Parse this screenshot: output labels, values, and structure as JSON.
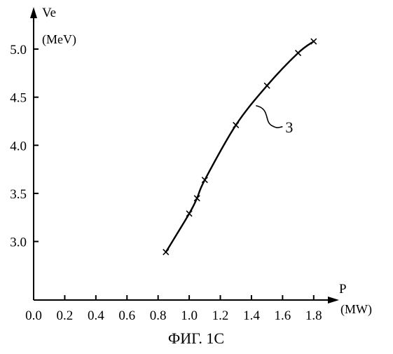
{
  "chart_data": {
    "type": "line",
    "caption": "ФИГ. 1С",
    "x_axis": {
      "name": "P",
      "unit": "(MW)",
      "range": [
        0.0,
        1.9
      ],
      "ticks": [
        "0.0",
        "0.2",
        "0.4",
        "0.6",
        "0.8",
        "1.0",
        "1.2",
        "1.4",
        "1.6",
        "1.8"
      ]
    },
    "y_axis": {
      "name": "Ve",
      "unit": "(MeV)",
      "range": [
        2.45,
        5.35
      ],
      "ticks": [
        "3.0",
        "3.5",
        "4.0",
        "4.5",
        "5.0"
      ]
    },
    "series": [
      {
        "callout": "3",
        "x": [
          0.85,
          1.0,
          1.05,
          1.1,
          1.3,
          1.5,
          1.7,
          1.8
        ],
        "y": [
          2.89,
          3.29,
          3.45,
          3.64,
          4.21,
          4.62,
          4.96,
          5.08
        ]
      }
    ]
  }
}
